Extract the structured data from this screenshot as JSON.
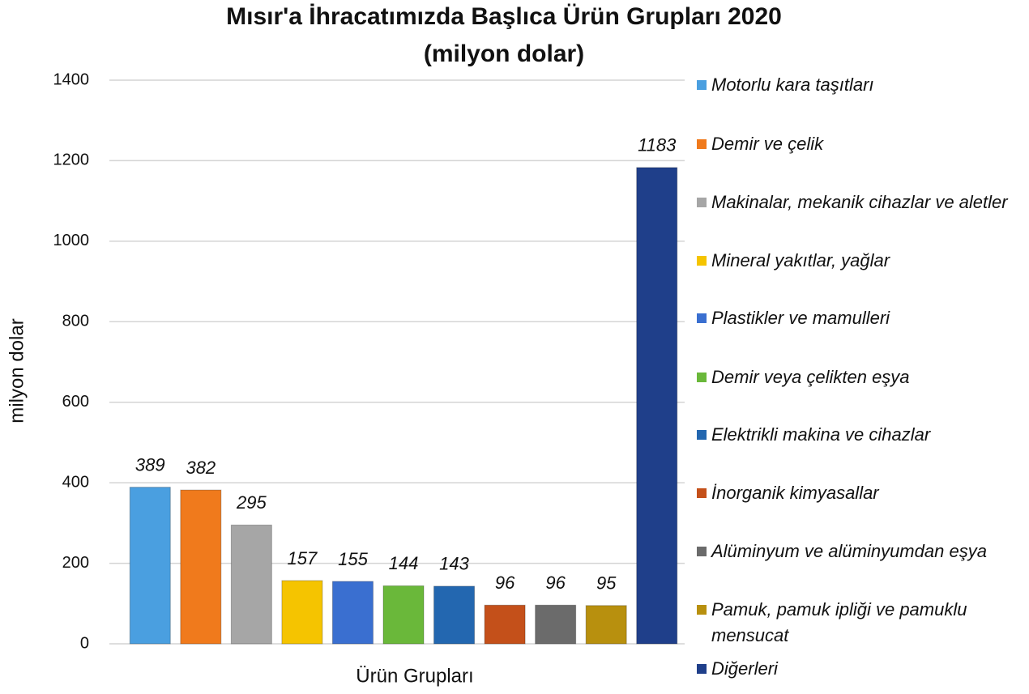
{
  "chart_data": {
    "type": "bar",
    "title": "Mısır'a İhracatımızda Başlıca Ürün Grupları 2020",
    "subtitle": "(milyon dolar)",
    "x_label": "Ürün Grupları",
    "y_label": "milyon dolar",
    "categories": [
      "Motorlu kara taşıtları",
      "Demir ve çelik",
      "Makinalar, mekanik cihazlar ve aletler",
      "Mineral yakıtlar, yağlar",
      "Plastikler ve mamulleri",
      "Demir veya çelikten eşya",
      "Elektrikli makina ve cihazlar",
      "İnorganik kimyasallar",
      "Alüminyum ve alüminyumdan eşya",
      "Pamuk, pamuk ipliği ve pamuklu mensucat",
      "Diğerleri"
    ],
    "values": [
      389,
      382,
      295,
      157,
      155,
      144,
      143,
      96,
      96,
      95,
      1183
    ],
    "colors": [
      "#4a9fe0",
      "#f07a1c",
      "#a6a6a6",
      "#f5c400",
      "#3a6fd0",
      "#6ab83a",
      "#2367b0",
      "#c4501a",
      "#6b6b6b",
      "#b8900e",
      "#1f3f8a"
    ],
    "ylim": [
      0,
      1400
    ],
    "yticks": [
      0,
      200,
      400,
      600,
      800,
      1000,
      1200,
      1400
    ],
    "grid": true,
    "legend": "right"
  }
}
